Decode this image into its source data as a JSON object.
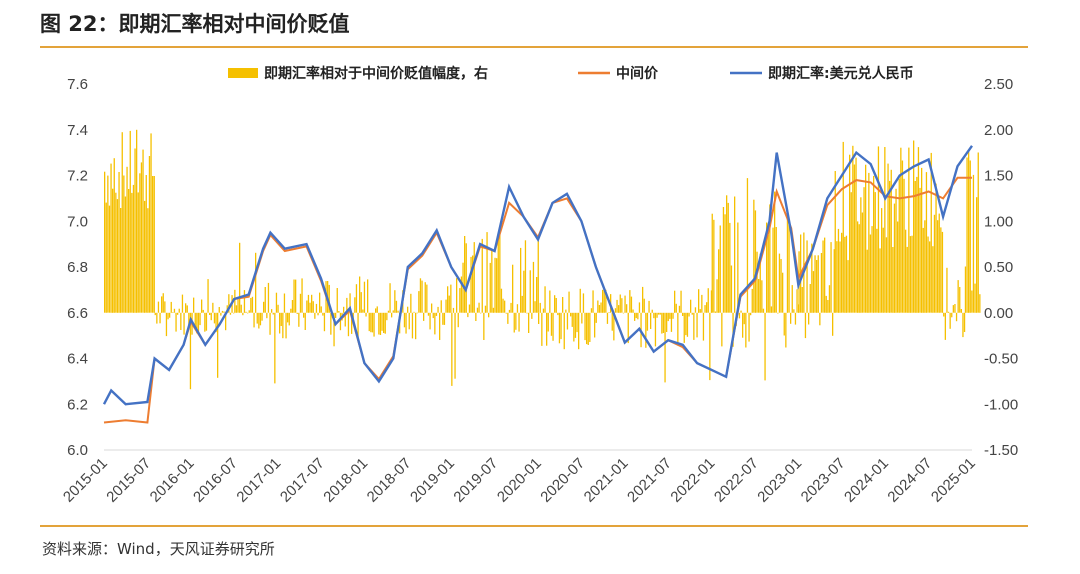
{
  "header": {
    "title": "图 22：即期汇率相对中间价贬值"
  },
  "footer": {
    "source": "资料来源：Wind，天风证券研究所"
  },
  "colors": {
    "bars": "#F5C000",
    "mid": "#ED7D31",
    "spot": "#4472C4",
    "rule": "#E3A33A",
    "axis": "#D9D9D9"
  },
  "chart_data": {
    "type": "bar+line",
    "title": "",
    "xlabel": "",
    "ylabel": "",
    "x_ticks": [
      "2015-01",
      "2015-07",
      "2016-01",
      "2016-07",
      "2017-01",
      "2017-07",
      "2018-01",
      "2018-07",
      "2019-01",
      "2019-07",
      "2020-01",
      "2020-07",
      "2021-01",
      "2021-07",
      "2022-01",
      "2022-07",
      "2023-01",
      "2023-07",
      "2024-01",
      "2024-07",
      "2025-01"
    ],
    "y_left": {
      "ticks": [
        "6.0",
        "6.2",
        "6.4",
        "6.6",
        "6.8",
        "7.0",
        "7.2",
        "7.4",
        "7.6"
      ],
      "range": [
        6.0,
        7.6
      ]
    },
    "y_right": {
      "ticks": [
        "-1.50",
        "-1.00",
        "-0.50",
        "0.00",
        "0.50",
        "1.00",
        "1.50",
        "2.00",
        "2.50"
      ],
      "range": [
        -1.5,
        2.5
      ]
    },
    "legend": {
      "placement": "top",
      "entries": [
        "即期汇率相对于中间价贬值幅度，右",
        "中间价",
        "即期汇率:美元兑人民币"
      ]
    },
    "series": [
      {
        "name": "即期汇率:美元兑人民币",
        "type": "line",
        "axis": "left",
        "points": [
          [
            "2015-01",
            6.2
          ],
          [
            "2015-02",
            6.26
          ],
          [
            "2015-04",
            6.2
          ],
          [
            "2015-07",
            6.21
          ],
          [
            "2015-08",
            6.4
          ],
          [
            "2015-10",
            6.35
          ],
          [
            "2015-12",
            6.46
          ],
          [
            "2016-01",
            6.57
          ],
          [
            "2016-03",
            6.46
          ],
          [
            "2016-05",
            6.55
          ],
          [
            "2016-07",
            6.66
          ],
          [
            "2016-09",
            6.68
          ],
          [
            "2016-11",
            6.88
          ],
          [
            "2016-12",
            6.95
          ],
          [
            "2017-02",
            6.88
          ],
          [
            "2017-05",
            6.9
          ],
          [
            "2017-07",
            6.75
          ],
          [
            "2017-09",
            6.55
          ],
          [
            "2017-11",
            6.62
          ],
          [
            "2018-01",
            6.38
          ],
          [
            "2018-03",
            6.3
          ],
          [
            "2018-05",
            6.4
          ],
          [
            "2018-07",
            6.8
          ],
          [
            "2018-09",
            6.86
          ],
          [
            "2018-11",
            6.96
          ],
          [
            "2019-01",
            6.8
          ],
          [
            "2019-03",
            6.7
          ],
          [
            "2019-05",
            6.9
          ],
          [
            "2019-07",
            6.87
          ],
          [
            "2019-09",
            7.15
          ],
          [
            "2019-11",
            7.02
          ],
          [
            "2020-01",
            6.92
          ],
          [
            "2020-03",
            7.08
          ],
          [
            "2020-05",
            7.12
          ],
          [
            "2020-07",
            7.0
          ],
          [
            "2020-09",
            6.8
          ],
          [
            "2021-01",
            6.47
          ],
          [
            "2021-03",
            6.53
          ],
          [
            "2021-05",
            6.43
          ],
          [
            "2021-07",
            6.48
          ],
          [
            "2021-09",
            6.46
          ],
          [
            "2021-11",
            6.38
          ],
          [
            "2022-01",
            6.35
          ],
          [
            "2022-03",
            6.32
          ],
          [
            "2022-05",
            6.68
          ],
          [
            "2022-07",
            6.75
          ],
          [
            "2022-09",
            7.0
          ],
          [
            "2022-10",
            7.3
          ],
          [
            "2022-12",
            6.95
          ],
          [
            "2023-01",
            6.72
          ],
          [
            "2023-03",
            6.88
          ],
          [
            "2023-05",
            7.1
          ],
          [
            "2023-07",
            7.2
          ],
          [
            "2023-09",
            7.3
          ],
          [
            "2023-11",
            7.25
          ],
          [
            "2024-01",
            7.1
          ],
          [
            "2024-03",
            7.2
          ],
          [
            "2024-05",
            7.24
          ],
          [
            "2024-07",
            7.27
          ],
          [
            "2024-09",
            7.02
          ],
          [
            "2024-11",
            7.24
          ],
          [
            "2025-01",
            7.33
          ]
        ]
      },
      {
        "name": "中间价",
        "type": "line",
        "axis": "left",
        "points": [
          [
            "2015-01",
            6.12
          ],
          [
            "2015-04",
            6.13
          ],
          [
            "2015-07",
            6.12
          ],
          [
            "2015-08",
            6.4
          ],
          [
            "2015-10",
            6.35
          ],
          [
            "2015-12",
            6.46
          ],
          [
            "2016-01",
            6.56
          ],
          [
            "2016-03",
            6.46
          ],
          [
            "2016-05",
            6.55
          ],
          [
            "2016-07",
            6.66
          ],
          [
            "2016-09",
            6.67
          ],
          [
            "2016-11",
            6.87
          ],
          [
            "2016-12",
            6.94
          ],
          [
            "2017-02",
            6.87
          ],
          [
            "2017-05",
            6.89
          ],
          [
            "2017-07",
            6.74
          ],
          [
            "2017-09",
            6.55
          ],
          [
            "2017-11",
            6.61
          ],
          [
            "2018-01",
            6.38
          ],
          [
            "2018-03",
            6.31
          ],
          [
            "2018-05",
            6.41
          ],
          [
            "2018-07",
            6.79
          ],
          [
            "2018-09",
            6.85
          ],
          [
            "2018-11",
            6.95
          ],
          [
            "2019-01",
            6.8
          ],
          [
            "2019-03",
            6.7
          ],
          [
            "2019-05",
            6.89
          ],
          [
            "2019-07",
            6.87
          ],
          [
            "2019-09",
            7.08
          ],
          [
            "2019-11",
            7.02
          ],
          [
            "2020-01",
            6.93
          ],
          [
            "2020-03",
            7.08
          ],
          [
            "2020-05",
            7.1
          ],
          [
            "2020-07",
            7.0
          ],
          [
            "2020-09",
            6.8
          ],
          [
            "2021-01",
            6.47
          ],
          [
            "2021-03",
            6.53
          ],
          [
            "2021-05",
            6.43
          ],
          [
            "2021-07",
            6.48
          ],
          [
            "2021-09",
            6.45
          ],
          [
            "2021-11",
            6.38
          ],
          [
            "2022-01",
            6.35
          ],
          [
            "2022-03",
            6.32
          ],
          [
            "2022-05",
            6.67
          ],
          [
            "2022-07",
            6.74
          ],
          [
            "2022-09",
            6.97
          ],
          [
            "2022-10",
            7.13
          ],
          [
            "2022-12",
            6.97
          ],
          [
            "2023-01",
            6.75
          ],
          [
            "2023-03",
            6.88
          ],
          [
            "2023-05",
            7.07
          ],
          [
            "2023-07",
            7.14
          ],
          [
            "2023-09",
            7.18
          ],
          [
            "2023-11",
            7.17
          ],
          [
            "2024-01",
            7.11
          ],
          [
            "2024-03",
            7.1
          ],
          [
            "2024-05",
            7.11
          ],
          [
            "2024-07",
            7.13
          ],
          [
            "2024-09",
            7.1
          ],
          [
            "2024-11",
            7.19
          ],
          [
            "2025-01",
            7.19
          ]
        ]
      },
      {
        "name": "即期汇率相对于中间价贬值幅度，右",
        "type": "bar",
        "axis": "right",
        "ranges": [
          {
            "from": "2015-01",
            "to": "2015-07",
            "center": 1.55,
            "spread": 0.45
          },
          {
            "from": "2015-08",
            "to": "2016-06",
            "center": 0.0,
            "spread": 0.25
          },
          {
            "from": "2016-07",
            "to": "2018-12",
            "center": 0.05,
            "spread": 0.35
          },
          {
            "from": "2019-01",
            "to": "2019-12",
            "center": 0.3,
            "spread": 0.6
          },
          {
            "from": "2020-01",
            "to": "2021-12",
            "center": -0.05,
            "spread": 0.35
          },
          {
            "from": "2022-01",
            "to": "2022-12",
            "center": 0.5,
            "spread": 0.9
          },
          {
            "from": "2023-01",
            "to": "2023-05",
            "center": 0.3,
            "spread": 0.6
          },
          {
            "from": "2023-06",
            "to": "2024-08",
            "center": 1.3,
            "spread": 0.6
          },
          {
            "from": "2024-09",
            "to": "2024-11",
            "center": 0.0,
            "spread": 0.3
          },
          {
            "from": "2024-12",
            "to": "2025-01",
            "center": 1.0,
            "spread": 0.8
          }
        ]
      }
    ]
  }
}
